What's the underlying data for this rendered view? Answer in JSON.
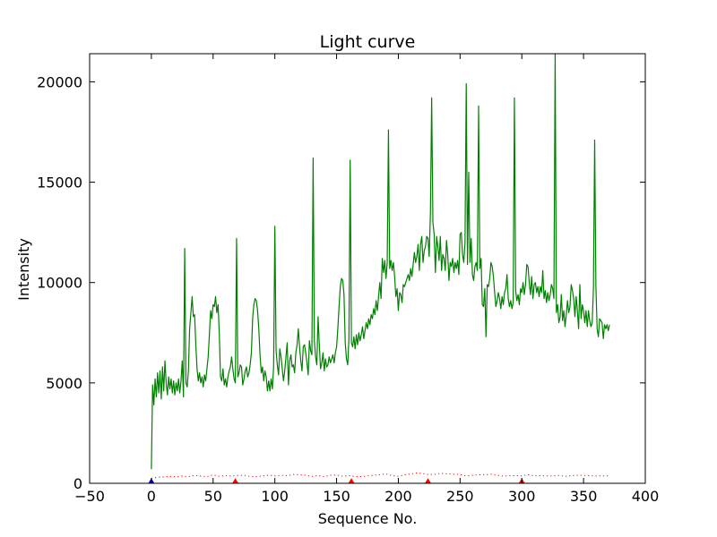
{
  "chart_data": {
    "type": "line",
    "title": "Light curve",
    "xlabel": "Sequence No.",
    "ylabel": "Intensity",
    "xlim": [
      -50,
      400
    ],
    "ylim": [
      0,
      21400
    ],
    "x_ticks": [
      -50,
      0,
      50,
      100,
      150,
      200,
      250,
      300,
      350,
      400
    ],
    "y_ticks": [
      0,
      5000,
      10000,
      15000,
      20000
    ],
    "grid": false,
    "legend": "none",
    "series": [
      {
        "style": "solid line",
        "color": "#008000",
        "x_start": 0,
        "x_step": 1,
        "values": [
          700,
          4900,
          3900,
          5200,
          4300,
          5500,
          4500,
          5600,
          4200,
          5800,
          4600,
          6100,
          5000,
          4400,
          5300,
          4700,
          5200,
          4500,
          5100,
          4400,
          5000,
          4600,
          5200,
          4500,
          5100,
          6100,
          4300,
          11700,
          5000,
          4800,
          5600,
          7700,
          8500,
          9300,
          8300,
          8400,
          6900,
          5700,
          5100,
          5500,
          5000,
          5300,
          4800,
          5400,
          5100,
          5700,
          6300,
          7400,
          8600,
          8200,
          8900,
          8800,
          9300,
          8500,
          8900,
          7500,
          5300,
          5100,
          5700,
          4900,
          5200,
          4800,
          5300,
          5600,
          5800,
          6300,
          5700,
          5200,
          5000,
          12200,
          5300,
          5500,
          5900,
          5800,
          4900,
          5200,
          5600,
          5800,
          5300,
          5500,
          5900,
          6500,
          8200,
          8900,
          9200,
          9100,
          8600,
          7700,
          6400,
          5500,
          5800,
          5100,
          5600,
          5300,
          4600,
          5100,
          4600,
          5200,
          4700,
          5800,
          12800,
          6600,
          5900,
          5400,
          6700,
          6300,
          5700,
          5100,
          5600,
          6300,
          7000,
          4900,
          6100,
          6400,
          5800,
          5900,
          5500,
          6500,
          6900,
          7700,
          6800,
          6100,
          5600,
          6800,
          6900,
          6500,
          6000,
          5400,
          7100,
          6600,
          6400,
          16200,
          7100,
          6300,
          5900,
          8300,
          6900,
          5700,
          6000,
          6500,
          5600,
          6200,
          5800,
          5900,
          6300,
          6000,
          6200,
          6400,
          6000,
          6500,
          6800,
          7700,
          8800,
          9800,
          10200,
          10100,
          9400,
          7000,
          6200,
          5900,
          7200,
          16100,
          7000,
          6800,
          7300,
          6700,
          7400,
          6900,
          7500,
          7100,
          7400,
          7800,
          7200,
          7600,
          8000,
          7700,
          8200,
          7900,
          8400,
          8200,
          8700,
          8400,
          9100,
          8600,
          9300,
          10000,
          9200,
          11200,
          10500,
          11100,
          10200,
          11000,
          17600,
          10700,
          11100,
          10600,
          11000,
          10300,
          9300,
          9700,
          8600,
          9500,
          9400,
          9000,
          9900,
          9800,
          10000,
          10200,
          10400,
          10100,
          10700,
          10300,
          10900,
          11500,
          11000,
          11300,
          11900,
          10600,
          11900,
          12300,
          11000,
          11600,
          11800,
          12300,
          12200,
          11300,
          13500,
          19200,
          13000,
          12400,
          10500,
          12300,
          11800,
          11100,
          12300,
          10600,
          11400,
          11200,
          10600,
          12100,
          11400,
          10100,
          11000,
          10800,
          11200,
          10500,
          11000,
          10700,
          11100,
          10400,
          12400,
          12500,
          11400,
          11000,
          12000,
          19900,
          10900,
          15500,
          11000,
          12200,
          10400,
          10100,
          10800,
          11000,
          10600,
          18800,
          10700,
          11200,
          8900,
          8800,
          9700,
          7300,
          9900,
          9800,
          10200,
          11000,
          10800,
          10300,
          9500,
          8800,
          9100,
          9500,
          9200,
          8700,
          9300,
          8900,
          9500,
          9700,
          10400,
          9200,
          8800,
          9100,
          8700,
          9000,
          19200,
          9600,
          9100,
          9400,
          8900,
          9700,
          9500,
          10000,
          9400,
          9900,
          10900,
          10800,
          10000,
          9400,
          10300,
          9200,
          9900,
          10000,
          9500,
          9800,
          9300,
          9800,
          9500,
          10600,
          9200,
          9600,
          9000,
          9500,
          9100,
          9400,
          9900,
          9700,
          9200,
          21400,
          8500,
          8900,
          8000,
          8300,
          9400,
          8100,
          8600,
          7800,
          8400,
          9100,
          8500,
          8800,
          9900,
          9600,
          9200,
          8300,
          9300,
          8600,
          7700,
          9900,
          8200,
          8900,
          8600,
          8000,
          8600,
          7800,
          8600,
          8100,
          7800,
          8000,
          9700,
          17100,
          9800,
          7700,
          7300,
          8200,
          8100,
          8000,
          7200,
          7900,
          7700,
          7900,
          7600,
          7900
        ]
      },
      {
        "style": "dotted line",
        "color": "#ff0000",
        "x_start": 0,
        "x_step": 5,
        "values": [
          250,
          300,
          320,
          340,
          320,
          360,
          330,
          390,
          360,
          330,
          420,
          350,
          380,
          360,
          390,
          400,
          340,
          330,
          370,
          400,
          370,
          400,
          380,
          440,
          430,
          400,
          340,
          390,
          330,
          400,
          410,
          350,
          380,
          340,
          330,
          370,
          400,
          430,
          470,
          380,
          350,
          420,
          460,
          520,
          480,
          430,
          450,
          500,
          470,
          450,
          440,
          360,
          400,
          420,
          430,
          450,
          400,
          360,
          380,
          380,
          370,
          430,
          380,
          380,
          370,
          370,
          390,
          350,
          380,
          400,
          390,
          380,
          360,
          370,
          370
        ]
      },
      {
        "style": "markers",
        "color": "#0000ff",
        "x": [
          0
        ],
        "values": [
          0
        ]
      },
      {
        "style": "markers",
        "color": "#ff0000",
        "x": [
          68,
          162,
          224,
          300
        ],
        "values": [
          0,
          0,
          0,
          0
        ]
      }
    ]
  }
}
